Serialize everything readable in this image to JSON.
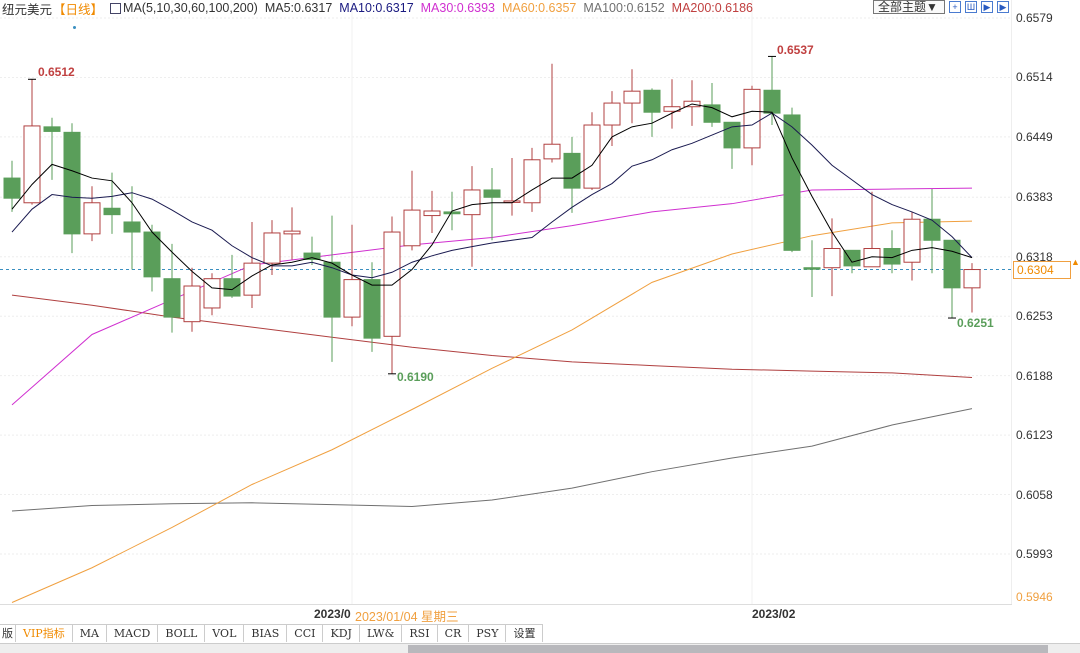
{
  "legend": {
    "symbol": "纽元美元",
    "period": "【日线】",
    "ma_params": "MA(5,10,30,60,100,200)",
    "ma5": "MA5:0.6317",
    "ma10": "MA10:0.6317",
    "ma30": "MA30:0.6393",
    "ma60": "MA60:0.6357",
    "ma100": "MA100:0.6152",
    "ma200": "MA200:0.6186"
  },
  "toolbar": {
    "theme_label": "全部主题▼",
    "icons": [
      "crosshair-icon",
      "bar-chart-icon",
      "play-icon",
      "forward-icon"
    ]
  },
  "colors": {
    "up": "#b04040",
    "down": "#5a9e5a",
    "ma5": "#000000",
    "ma10": "#1a1a50",
    "ma30": "#d030d0",
    "ma60": "#f0a040",
    "ma100": "#707070",
    "ma200": "#b04040",
    "current": "#3a8fc0"
  },
  "price_axis": [
    "0.6579",
    "0.6514",
    "0.6449",
    "0.6383",
    "0.6318",
    "0.6253",
    "0.6188",
    "0.6123",
    "0.6058",
    "0.5993",
    "0.5946"
  ],
  "current_price": "0.6304",
  "annotations": {
    "high1": "0.6512",
    "high2": "0.6537",
    "low1": "0.6190",
    "low2": "0.6251"
  },
  "date_axis": {
    "jan": "2023/0",
    "tooltip": "2023/01/04 星期三",
    "feb": "2023/02"
  },
  "tabs": [
    "版",
    "VIP指标",
    "MA",
    "MACD",
    "BOLL",
    "VOL",
    "BIAS",
    "CCI",
    "KDJ",
    "LW&",
    "RSI",
    "CR",
    "PSY",
    "设置"
  ],
  "chart_data": {
    "type": "candlestick",
    "ylim": [
      0.5946,
      0.6579
    ],
    "ohlc": [
      [
        0.6404,
        0.6423,
        0.6367,
        0.6382
      ],
      [
        0.6377,
        0.6512,
        0.6375,
        0.6461
      ],
      [
        0.646,
        0.647,
        0.6402,
        0.6455
      ],
      [
        0.6454,
        0.6464,
        0.6322,
        0.6343
      ],
      [
        0.6343,
        0.6395,
        0.6335,
        0.6377
      ],
      [
        0.6371,
        0.641,
        0.6343,
        0.6364
      ],
      [
        0.6356,
        0.6395,
        0.6304,
        0.6345
      ],
      [
        0.6345,
        0.6353,
        0.628,
        0.6296
      ],
      [
        0.6294,
        0.6332,
        0.6235,
        0.6252
      ],
      [
        0.6247,
        0.6306,
        0.6236,
        0.6286
      ],
      [
        0.6262,
        0.63,
        0.6254,
        0.6294
      ],
      [
        0.6294,
        0.632,
        0.6273,
        0.6275
      ],
      [
        0.6276,
        0.6356,
        0.6262,
        0.6311
      ],
      [
        0.6311,
        0.6358,
        0.6298,
        0.6344
      ],
      [
        0.6343,
        0.6372,
        0.6315,
        0.6346
      ],
      [
        0.6322,
        0.634,
        0.6309,
        0.6315
      ],
      [
        0.6312,
        0.6363,
        0.6203,
        0.6252
      ],
      [
        0.6252,
        0.6353,
        0.6242,
        0.6293
      ],
      [
        0.6293,
        0.6312,
        0.6214,
        0.6229
      ],
      [
        0.6231,
        0.6362,
        0.619,
        0.6345
      ],
      [
        0.633,
        0.6412,
        0.6325,
        0.6369
      ],
      [
        0.6363,
        0.639,
        0.6344,
        0.6368
      ],
      [
        0.6367,
        0.6389,
        0.6347,
        0.6365
      ],
      [
        0.6364,
        0.6417,
        0.6307,
        0.6391
      ],
      [
        0.6391,
        0.6415,
        0.6336,
        0.6383
      ],
      [
        0.6378,
        0.6426,
        0.6363,
        0.6379
      ],
      [
        0.6377,
        0.6437,
        0.6367,
        0.6424
      ],
      [
        0.6425,
        0.6529,
        0.6421,
        0.6441
      ],
      [
        0.6431,
        0.6449,
        0.6366,
        0.6393
      ],
      [
        0.6393,
        0.6476,
        0.6391,
        0.6462
      ],
      [
        0.6462,
        0.6499,
        0.6439,
        0.6486
      ],
      [
        0.6486,
        0.6523,
        0.6464,
        0.6499
      ],
      [
        0.65,
        0.6502,
        0.6449,
        0.6476
      ],
      [
        0.6477,
        0.6512,
        0.6458,
        0.6482
      ],
      [
        0.6482,
        0.6511,
        0.6461,
        0.6488
      ],
      [
        0.6484,
        0.6508,
        0.646,
        0.6465
      ],
      [
        0.6465,
        0.6465,
        0.6414,
        0.6437
      ],
      [
        0.6437,
        0.6505,
        0.6418,
        0.6501
      ],
      [
        0.65,
        0.6537,
        0.6462,
        0.6475
      ],
      [
        0.6473,
        0.6481,
        0.6323,
        0.6325
      ],
      [
        0.6306,
        0.6336,
        0.6274,
        0.6305
      ],
      [
        0.6306,
        0.636,
        0.6275,
        0.6327
      ],
      [
        0.6325,
        0.6325,
        0.63,
        0.6308
      ],
      [
        0.6307,
        0.6389,
        0.6307,
        0.6327
      ],
      [
        0.6327,
        0.6347,
        0.63,
        0.631
      ],
      [
        0.6312,
        0.6367,
        0.6292,
        0.6359
      ],
      [
        0.6359,
        0.6392,
        0.63,
        0.6336
      ],
      [
        0.6336,
        0.6336,
        0.6251,
        0.6284
      ],
      [
        0.6284,
        0.6311,
        0.6257,
        0.6304
      ]
    ],
    "ma5": [
      0.637,
      0.6397,
      0.6419,
      0.6412,
      0.6404,
      0.6401,
      0.6377,
      0.6345,
      0.6323,
      0.6302,
      0.6284,
      0.6282,
      0.6297,
      0.6309,
      0.6312,
      0.6317,
      0.6311,
      0.6298,
      0.6287,
      0.6287,
      0.6304,
      0.6331,
      0.6368,
      0.6375,
      0.6377,
      0.6377,
      0.6391,
      0.6404,
      0.6404,
      0.6418,
      0.6449,
      0.646,
      0.6464,
      0.6475,
      0.6485,
      0.6481,
      0.6471,
      0.6477,
      0.6476,
      0.6426,
      0.6384,
      0.6345,
      0.6312,
      0.6318,
      0.6317,
      0.6325,
      0.6328,
      0.6324,
      0.6317
    ],
    "ma10": [
      0.6345,
      0.637,
      0.6386,
      0.6383,
      0.6382,
      0.6384,
      0.6388,
      0.6381,
      0.6369,
      0.6356,
      0.6347,
      0.633,
      0.6317,
      0.6308,
      0.6308,
      0.6312,
      0.6306,
      0.6298,
      0.6295,
      0.6301,
      0.6312,
      0.6319,
      0.6325,
      0.6329,
      0.6333,
      0.6336,
      0.6339,
      0.6356,
      0.6372,
      0.6386,
      0.6398,
      0.6417,
      0.6424,
      0.6435,
      0.6442,
      0.6451,
      0.646,
      0.6462,
      0.6475,
      0.646,
      0.644,
      0.6418,
      0.6402,
      0.6386,
      0.6375,
      0.6367,
      0.6358,
      0.634,
      0.6317
    ],
    "ma_sample_step": 4,
    "ma30": [
      0.6156,
      0.6233,
      0.6271,
      0.6309,
      0.632,
      0.6331,
      0.6339,
      0.6352,
      0.6367,
      0.6376,
      0.6391,
      0.6392,
      0.6393
    ],
    "ma60": [
      0.594,
      0.5978,
      0.6022,
      0.6069,
      0.6107,
      0.6151,
      0.6196,
      0.6238,
      0.629,
      0.6321,
      0.6341,
      0.6355,
      0.6357
    ],
    "ma100": [
      0.604,
      0.6046,
      0.6048,
      0.6049,
      0.6047,
      0.6045,
      0.6052,
      0.6065,
      0.6083,
      0.6098,
      0.6111,
      0.6134,
      0.6152
    ],
    "ma200": [
      0.6276,
      0.6265,
      0.6252,
      0.6241,
      0.623,
      0.6219,
      0.621,
      0.6203,
      0.6199,
      0.6195,
      0.6193,
      0.6191,
      0.6186
    ]
  }
}
